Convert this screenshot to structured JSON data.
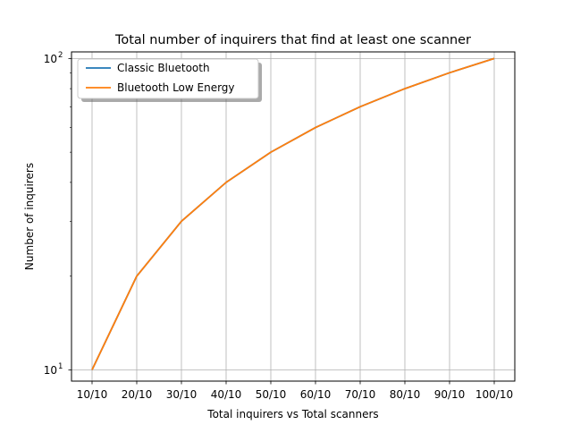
{
  "chart_data": {
    "type": "line",
    "title": "Total number of inquirers that find at least one scanner",
    "xlabel": "Total inquirers vs Total scanners",
    "ylabel": "Number of inquirers",
    "yscale": "log",
    "ylim": [
      9.2,
      105
    ],
    "grid": true,
    "legend_position": "top-left",
    "categories": [
      "10/10",
      "20/10",
      "30/10",
      "40/10",
      "50/10",
      "60/10",
      "70/10",
      "80/10",
      "90/10",
      "100/10"
    ],
    "y_ticks": [
      {
        "value": 10,
        "base": "10",
        "exp": "1"
      },
      {
        "value": 100,
        "base": "10",
        "exp": "2"
      }
    ],
    "series": [
      {
        "name": "Classic Bluetooth",
        "color": "#1f77b4",
        "values": [
          10,
          20,
          30,
          40,
          50,
          60,
          70,
          80,
          90,
          100
        ]
      },
      {
        "name": "Bluetooth Low Energy",
        "color": "#ff7f0e",
        "values": [
          10,
          20,
          30,
          40,
          50,
          60,
          70,
          80,
          90,
          100
        ]
      }
    ]
  }
}
